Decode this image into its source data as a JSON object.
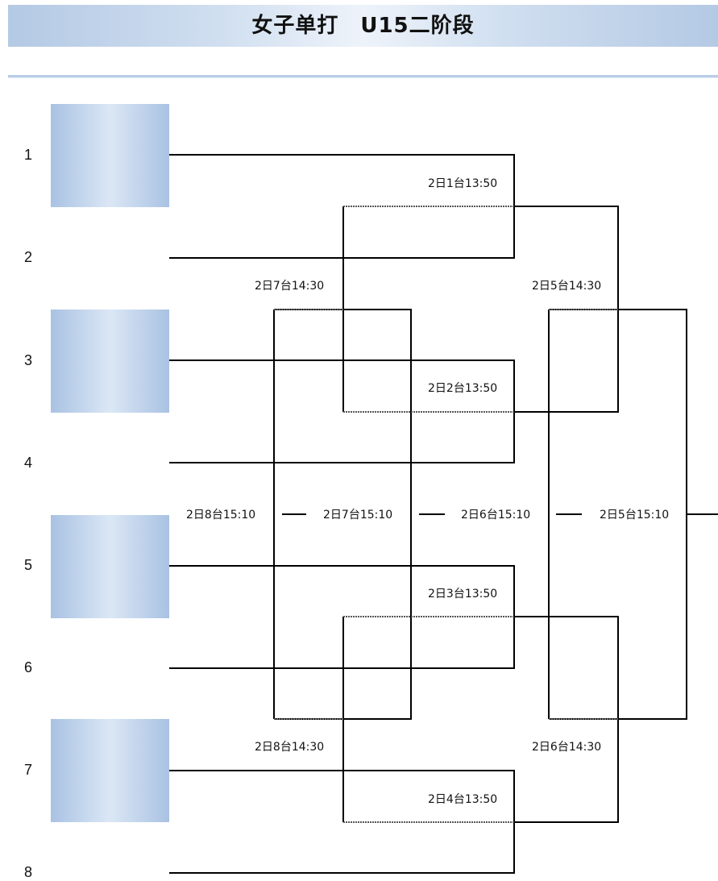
{
  "header": {
    "title": "女子单打　U15二阶段"
  },
  "seeds": [
    "1",
    "2",
    "3",
    "4",
    "5",
    "6",
    "7",
    "8"
  ],
  "matches": {
    "r1_m1": "2日1台13:50",
    "r1_m2": "2日2台13:50",
    "r1_m3": "2日3台13:50",
    "r1_m4": "2日4台13:50",
    "r2_top_left": "2日7台14:30",
    "r2_top_right": "2日5台14:30",
    "r2_bottom_left": "2日8台14:30",
    "r2_bottom_right": "2日6台14:30",
    "final_8": "2日8台15:10",
    "final_7": "2日7台15:10",
    "final_6": "2日6台15:10",
    "final_5": "2日5台15:10"
  },
  "colors": {
    "slot_fill": "#b8cce8",
    "header_band": "#c9d9ee",
    "line": "#000000"
  }
}
